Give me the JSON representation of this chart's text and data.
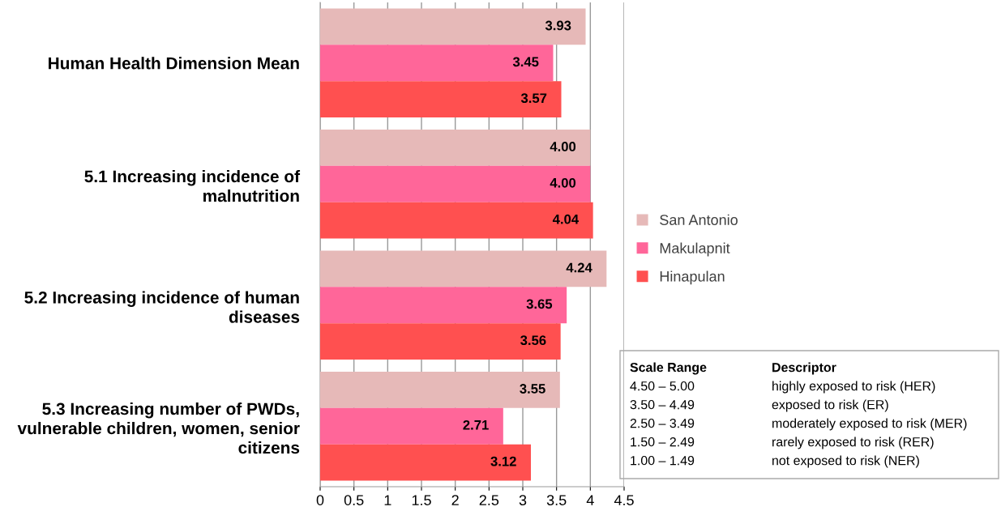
{
  "chart_data": {
    "type": "bar",
    "orientation": "horizontal",
    "categories": [
      "Human Health Dimension Mean",
      "5.1 Increasing incidence of malnutrition",
      "5.2 Increasing incidence of human diseases",
      "5.3 Increasing number of PWDs, vulnerable children, women, senior citizens"
    ],
    "series": [
      {
        "name": "San Antonio",
        "color": "#e6b9b8",
        "values": [
          3.93,
          4.0,
          4.24,
          3.55
        ],
        "value_labels": [
          "3.93",
          "4.00",
          "4.24",
          "3.55"
        ]
      },
      {
        "name": "Makulapnit",
        "color": "#ff6699",
        "values": [
          3.45,
          4.0,
          3.65,
          2.71
        ],
        "value_labels": [
          "3.45",
          "4.00",
          "3.65",
          "2.71"
        ]
      },
      {
        "name": "Hinapulan",
        "color": "#ff5050",
        "values": [
          3.57,
          4.04,
          3.56,
          3.12
        ],
        "value_labels": [
          "3.57",
          "4.04",
          "3.56",
          "3.12"
        ]
      }
    ],
    "xlim": [
      0,
      4.5
    ],
    "xticks": [
      0,
      0.5,
      1,
      1.5,
      2,
      2.5,
      3,
      3.5,
      4,
      4.5
    ],
    "grid": "x",
    "legend": "right",
    "annotations": [
      "Scale Range",
      "Descriptor",
      "4.50 – 5.00",
      "highly exposed to risk (HER)",
      "3.50 – 4.49",
      "exposed to risk (ER)",
      "2.50 – 3.49",
      "moderately exposed to risk (MER)",
      "1.50 – 2.49",
      "rarely exposed to risk (RER)",
      "1.00 – 1.49",
      "not exposed to risk (NER)"
    ]
  }
}
